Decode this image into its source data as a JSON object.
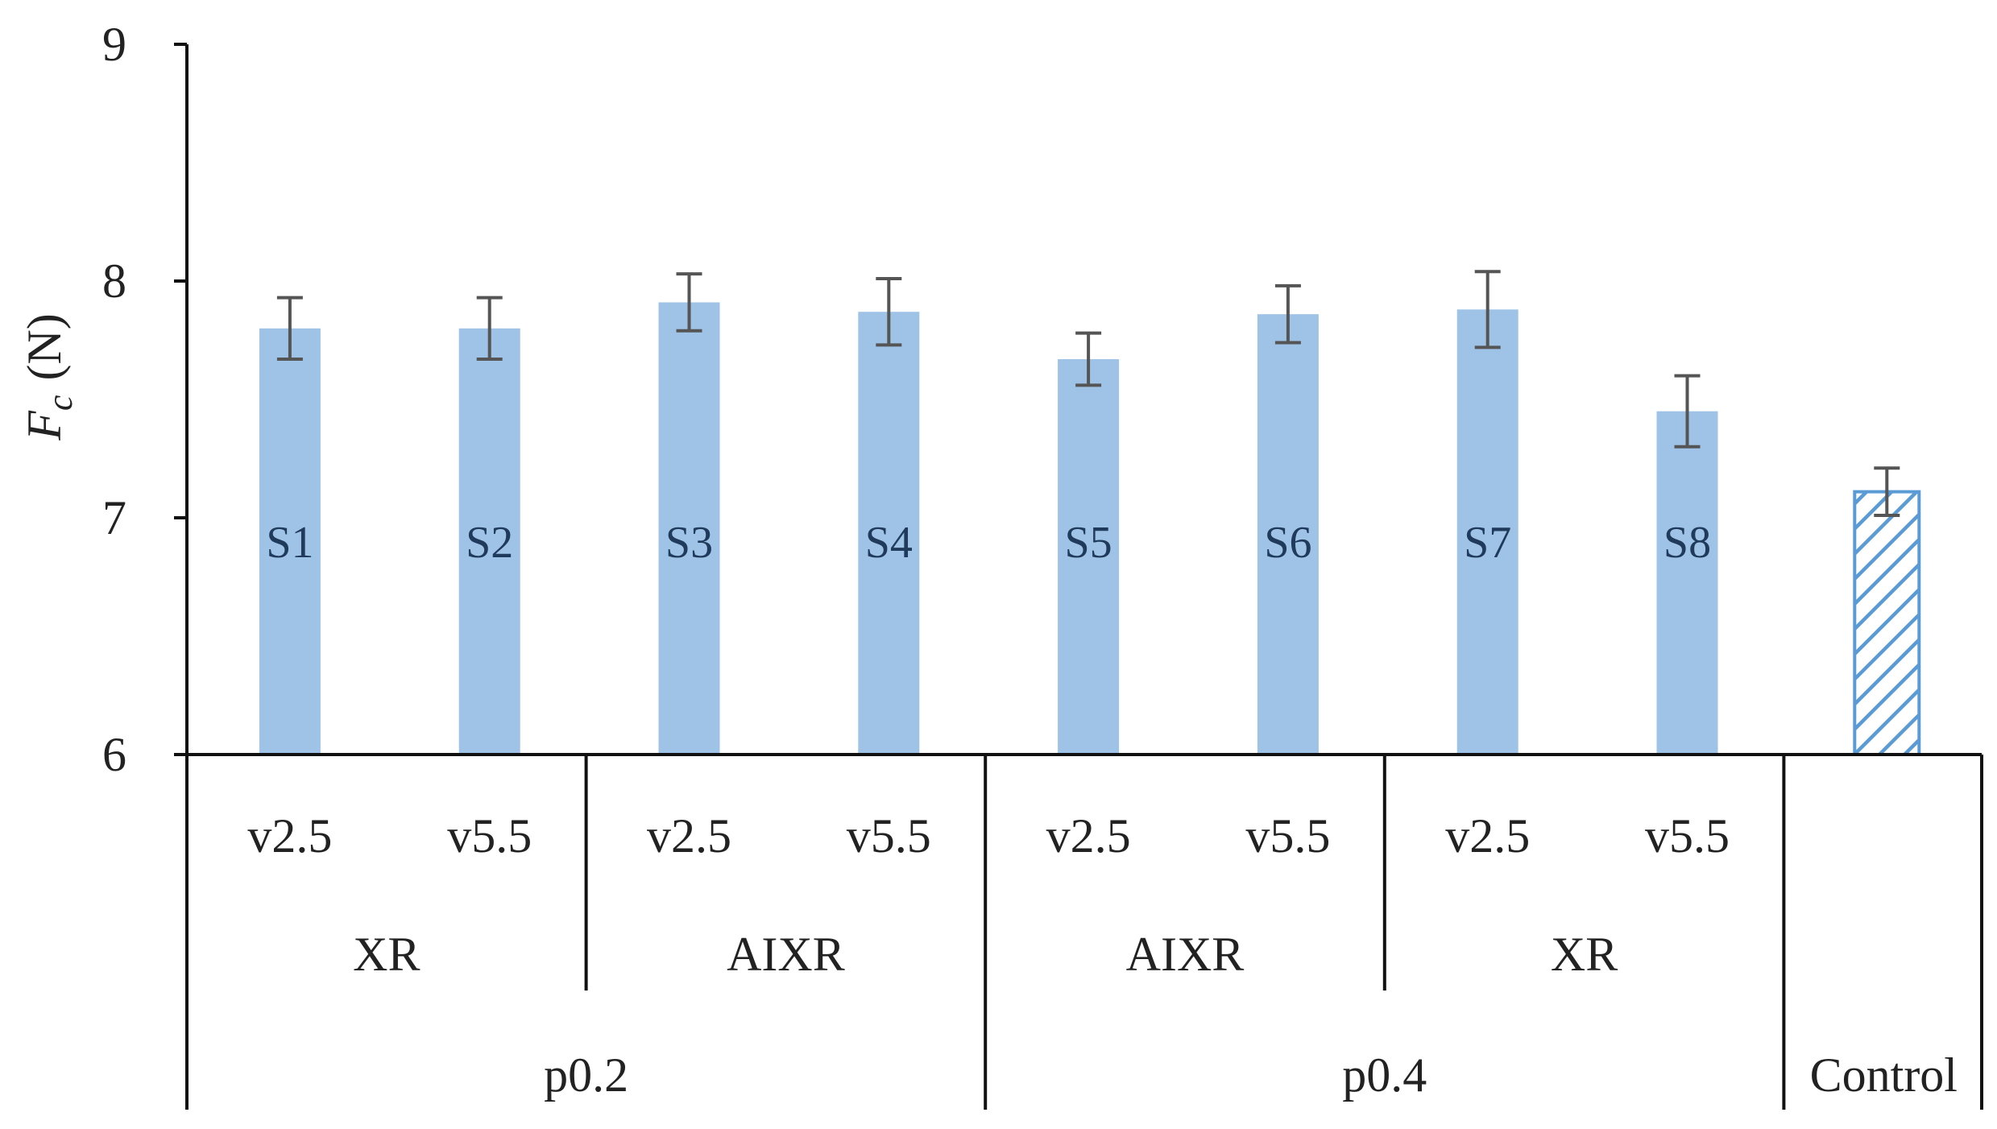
{
  "chart_data": {
    "type": "bar",
    "ylabel": {
      "symbol": "F",
      "subscript": "c",
      "unit": "(N)"
    },
    "ylim": [
      6,
      9
    ],
    "yticks": [
      6,
      7,
      8,
      9
    ],
    "grid": false,
    "bars": [
      {
        "label": "S1",
        "level1": "v2.5",
        "level2": "XR",
        "level3": "p0.2",
        "value": 7.8,
        "error": 0.13,
        "pattern": "solid"
      },
      {
        "label": "S2",
        "level1": "v5.5",
        "level2": "XR",
        "level3": "p0.2",
        "value": 7.8,
        "error": 0.13,
        "pattern": "solid"
      },
      {
        "label": "S3",
        "level1": "v2.5",
        "level2": "AIXR",
        "level3": "p0.2",
        "value": 7.91,
        "error": 0.12,
        "pattern": "solid"
      },
      {
        "label": "S4",
        "level1": "v5.5",
        "level2": "AIXR",
        "level3": "p0.2",
        "value": 7.87,
        "error": 0.14,
        "pattern": "solid"
      },
      {
        "label": "S5",
        "level1": "v2.5",
        "level2": "AIXR",
        "level3": "p0.4",
        "value": 7.67,
        "error": 0.11,
        "pattern": "solid"
      },
      {
        "label": "S6",
        "level1": "v5.5",
        "level2": "AIXR",
        "level3": "p0.4",
        "value": 7.86,
        "error": 0.12,
        "pattern": "solid"
      },
      {
        "label": "S7",
        "level1": "v2.5",
        "level2": "XR",
        "level3": "p0.4",
        "value": 7.88,
        "error": 0.16,
        "pattern": "solid"
      },
      {
        "label": "S8",
        "level1": "v5.5",
        "level2": "XR",
        "level3": "p0.4",
        "value": 7.45,
        "error": 0.15,
        "pattern": "solid"
      },
      {
        "label": "",
        "level1": "",
        "level2": "",
        "level3": "Control",
        "value": 7.11,
        "error": 0.1,
        "pattern": "hatched"
      }
    ],
    "level2_groups": [
      "XR",
      "AIXR",
      "AIXR",
      "XR"
    ],
    "level3_groups": [
      "p0.2",
      "p0.4",
      "Control"
    ],
    "colors": {
      "bar": "#9fc3e7",
      "hatch": "#5b9bd5",
      "error_bar": "#555555",
      "axis": "#111111"
    }
  }
}
